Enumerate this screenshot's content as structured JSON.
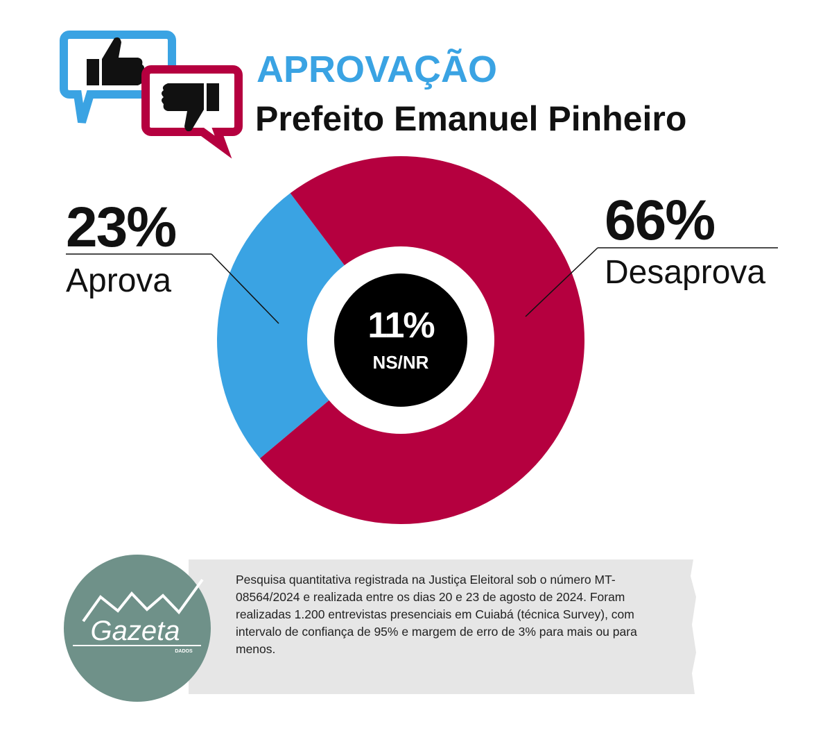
{
  "chart_data": {
    "type": "donut",
    "title": "APROVAÇÃO",
    "subtitle": "Prefeito Emanuel Pinheiro",
    "categories": [
      "Aprova",
      "Desaprova"
    ],
    "values": [
      23,
      66
    ],
    "value_labels": [
      "23%",
      "66%"
    ],
    "colors": [
      "#3aa3e3",
      "#b5003f"
    ],
    "center_value": 11,
    "center_value_label": "11%",
    "center_category": "NS/NR"
  },
  "footer": {
    "logo": "Gazeta",
    "logo_sub": "DADOS",
    "note": "Pesquisa quantitativa registrada na Justiça Eleitoral sob o número MT-08564/2024 e realizada entre os dias 20 e 23 de agosto de 2024. Foram realizadas 1.200 entrevistas presenciais em Cuiabá (técnica Survey), com intervalo de confiança de 95% e margem de erro de 3% para mais ou para menos."
  }
}
